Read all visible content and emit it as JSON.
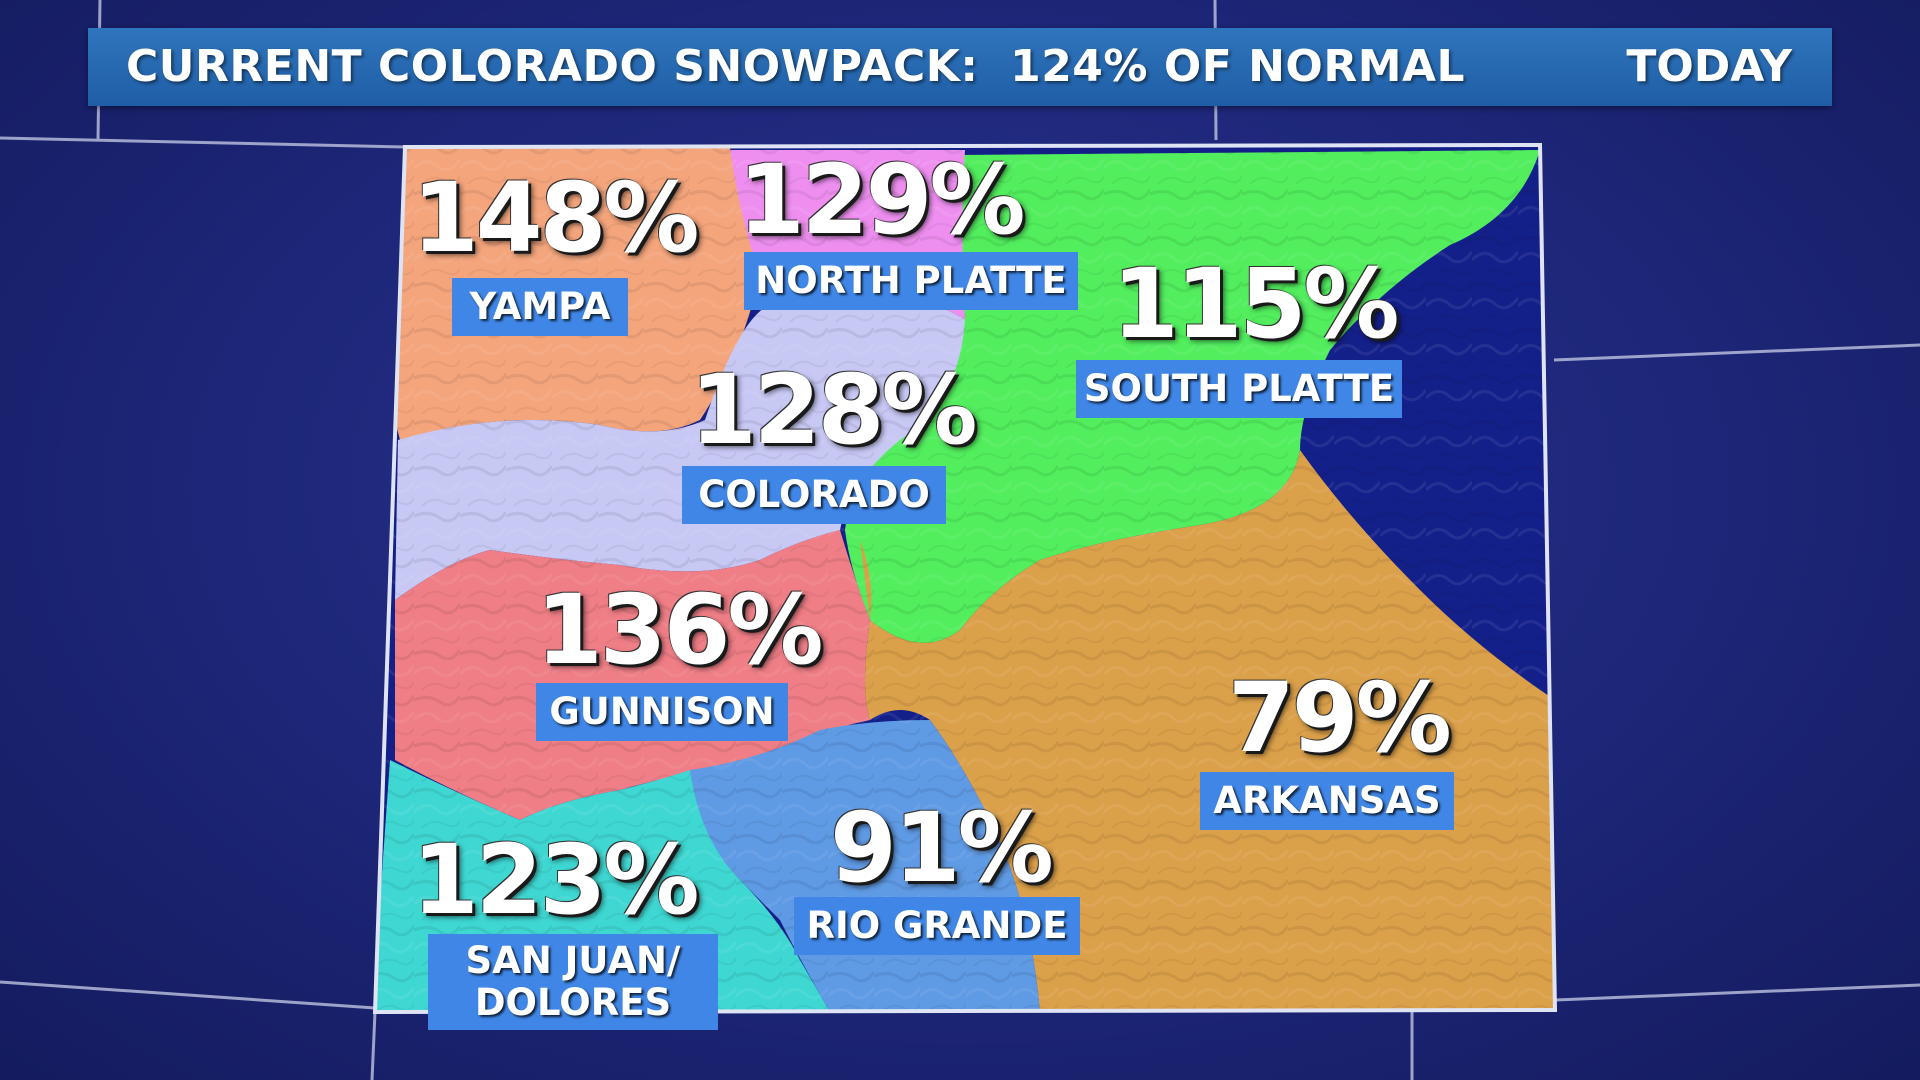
{
  "header": {
    "title": "CURRENT COLORADO SNOWPACK:  124% OF NORMAL",
    "date_label": "TODAY"
  },
  "basins": [
    {
      "name": "YAMPA",
      "percent": "148%",
      "color": "#f4a57c"
    },
    {
      "name": "NORTH PLATTE",
      "percent": "129%",
      "color": "#ee8ff0"
    },
    {
      "name": "SOUTH PLATTE",
      "percent": "115%",
      "color": "#52ee5e"
    },
    {
      "name": "COLORADO",
      "percent": "128%",
      "color": "#c7c8f4"
    },
    {
      "name": "GUNNISON",
      "percent": "136%",
      "color": "#ef7e86"
    },
    {
      "name": "ARKANSAS",
      "percent": "79%",
      "color": "#dba04a"
    },
    {
      "name": "RIO GRANDE",
      "percent": "91%",
      "color": "#5f9ae4"
    },
    {
      "name": "SAN JUAN/ DOLORES",
      "name_line1": "SAN JUAN/",
      "name_line2": "DOLORES",
      "percent": "123%",
      "color": "#3fd7d2"
    }
  ],
  "colors": {
    "background": "#1d2678",
    "title_bar": "#2366ae",
    "label_box": "#3f86e6",
    "unshaded_state": "#14208a",
    "border": "#dfe4f5"
  }
}
